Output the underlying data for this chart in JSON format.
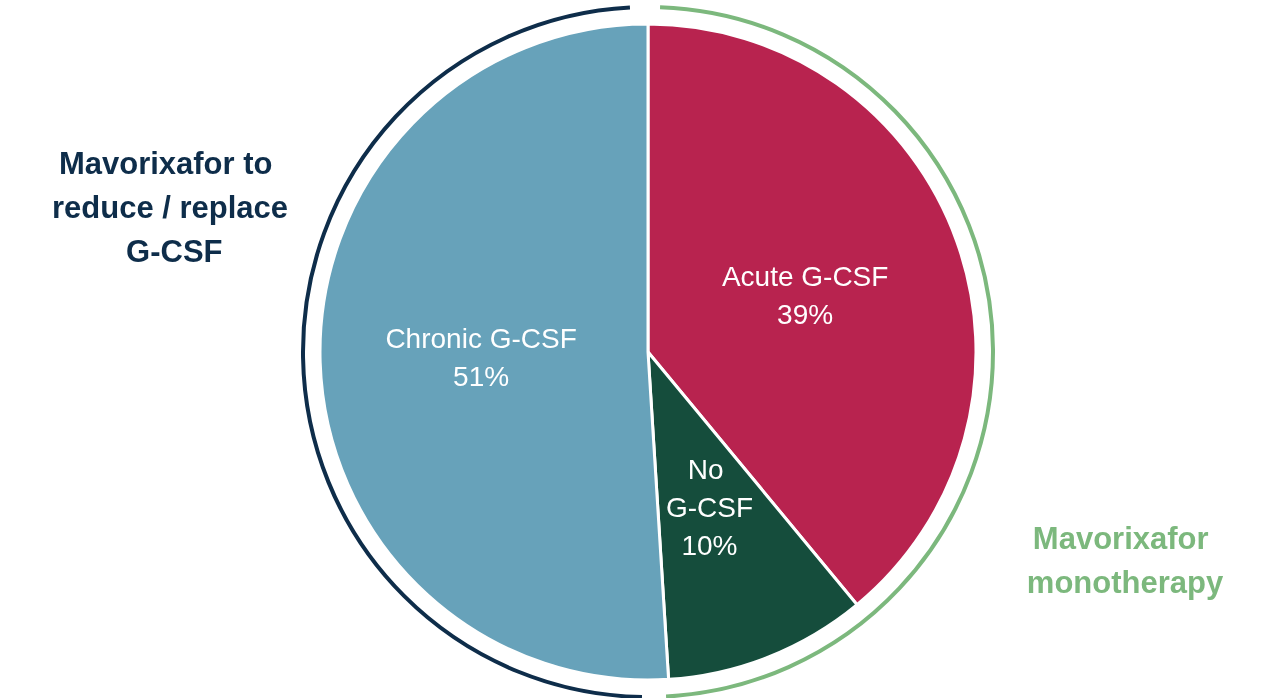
{
  "chart_data": {
    "type": "pie",
    "categories": [
      "Acute G-CSF",
      "No G-CSF",
      "Chronic G-CSF"
    ],
    "values": [
      39,
      10,
      51
    ],
    "colors": [
      "#b8234f",
      "#154d3c",
      "#67a2ba"
    ],
    "value_labels": [
      "39%",
      "10%",
      "51%"
    ],
    "legend": false,
    "annotations": [
      "Mavorixafor to reduce / replace G-CSF",
      "Mavorixafor monotherapy"
    ]
  }
}
